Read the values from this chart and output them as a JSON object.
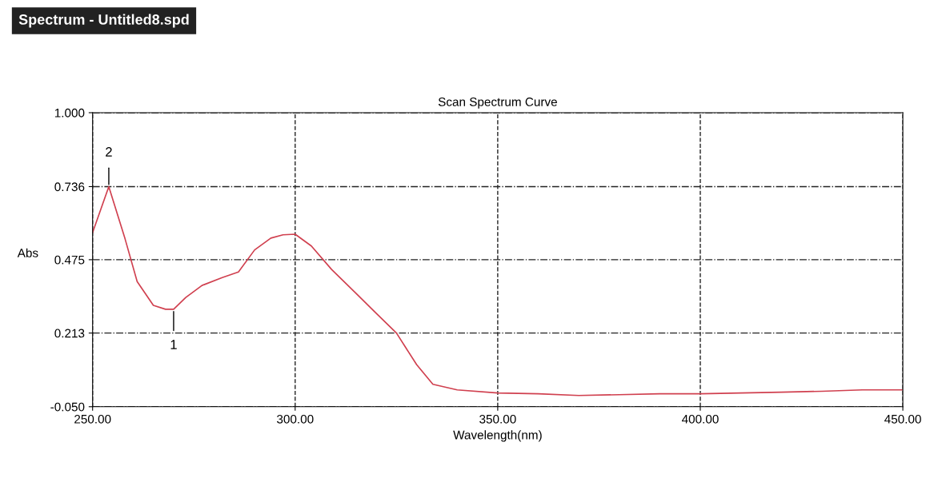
{
  "chart_data": {
    "type": "line",
    "title": "Spectrum - Untitled8.spd",
    "subtitle": "Scan Spectrum Curve",
    "xlabel": "Wavelength(nm)",
    "ylabel": "Abs",
    "x": [
      250,
      254,
      258,
      261,
      265,
      268,
      270,
      273,
      277,
      282,
      286,
      290,
      294,
      297,
      300,
      304,
      309,
      315,
      320,
      325,
      330,
      334,
      340,
      350,
      360,
      370,
      380,
      390,
      400,
      410,
      420,
      430,
      440,
      450
    ],
    "series": [
      {
        "color": "#d0404f",
        "values": [
          0.572,
          0.736,
          0.55,
          0.397,
          0.312,
          0.298,
          0.298,
          0.34,
          0.383,
          0.411,
          0.431,
          0.51,
          0.552,
          0.564,
          0.566,
          0.524,
          0.44,
          0.355,
          0.284,
          0.213,
          0.1,
          0.03,
          0.01,
          -0.001,
          -0.004,
          -0.01,
          -0.007,
          -0.004,
          -0.004,
          -0.001,
          0.002,
          0.005,
          0.01,
          0.01
        ]
      }
    ],
    "xlim": [
      250,
      450
    ],
    "xticks": [
      {
        "value": 250,
        "label": "250.00"
      },
      {
        "value": 300,
        "label": "300.00"
      },
      {
        "value": 350,
        "label": "350.00"
      },
      {
        "value": 400,
        "label": "400.00"
      },
      {
        "value": 450,
        "label": "450.00"
      }
    ],
    "ylim": [
      -0.05,
      1.0
    ],
    "yticks": [
      {
        "value": -0.05,
        "label": "-0.050"
      },
      {
        "value": 0.213,
        "label": "0.213"
      },
      {
        "value": 0.475,
        "label": "0.475"
      },
      {
        "value": 0.736,
        "label": "0.736"
      },
      {
        "value": 1.0,
        "label": "1.000"
      }
    ],
    "annotations": [
      {
        "text": "2",
        "x": 254,
        "y": 0.736
      },
      {
        "text": "1",
        "x": 270,
        "y": 0.298
      }
    ],
    "grid": true,
    "line_style": "solid",
    "marker": "none"
  }
}
